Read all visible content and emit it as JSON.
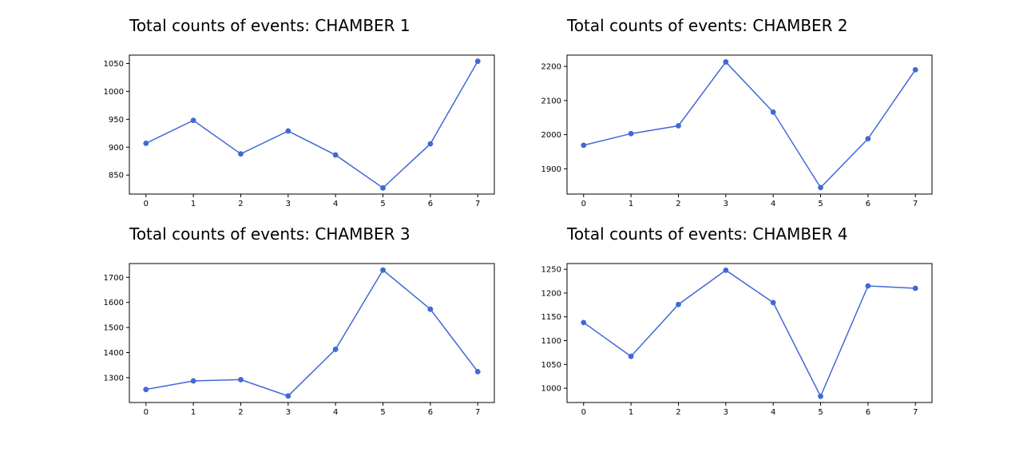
{
  "figure": {
    "background": "#ffffff",
    "line_color": "#4169d6"
  },
  "chart_data": [
    {
      "type": "line",
      "title": "Total counts of events: CHAMBER 1",
      "xlabel": "",
      "ylabel": "",
      "x": [
        0,
        1,
        2,
        3,
        4,
        5,
        6,
        7
      ],
      "x_tick_labels": [
        "0",
        "1",
        "2",
        "3",
        "4",
        "5",
        "6",
        "7"
      ],
      "xlim": [
        -0.35,
        7.35
      ],
      "y_ticks": [
        850,
        900,
        950,
        1000,
        1050
      ],
      "y_tick_labels": [
        "850",
        "900",
        "950",
        "1000",
        "1050"
      ],
      "ylim": [
        816,
        1065
      ],
      "series": [
        {
          "values": [
            907,
            948,
            888,
            929,
            886,
            827,
            906,
            1054
          ],
          "color": "#4169d6",
          "marker": "circle"
        }
      ],
      "grid": false,
      "legend": "none"
    },
    {
      "type": "line",
      "title": "Total counts of events: CHAMBER 2",
      "xlabel": "",
      "ylabel": "",
      "x": [
        0,
        1,
        2,
        3,
        4,
        5,
        6,
        7
      ],
      "x_tick_labels": [
        "0",
        "1",
        "2",
        "3",
        "4",
        "5",
        "6",
        "7"
      ],
      "xlim": [
        -0.35,
        7.35
      ],
      "y_ticks": [
        1900,
        2000,
        2100,
        2200
      ],
      "y_tick_labels": [
        "1900",
        "2000",
        "2100",
        "2200"
      ],
      "ylim": [
        1826,
        2233
      ],
      "series": [
        {
          "values": [
            1969,
            2003,
            2026,
            2213,
            2066,
            1845,
            1988,
            2190
          ],
          "color": "#4169d6",
          "marker": "circle"
        }
      ],
      "grid": false,
      "legend": "none"
    },
    {
      "type": "line",
      "title": "Total counts of events: CHAMBER 3",
      "xlabel": "",
      "ylabel": "",
      "x": [
        0,
        1,
        2,
        3,
        4,
        5,
        6,
        7
      ],
      "x_tick_labels": [
        "0",
        "1",
        "2",
        "3",
        "4",
        "5",
        "6",
        "7"
      ],
      "xlim": [
        -0.35,
        7.35
      ],
      "y_ticks": [
        1300,
        1400,
        1500,
        1600,
        1700
      ],
      "y_tick_labels": [
        "1300",
        "1400",
        "1500",
        "1600",
        "1700"
      ],
      "ylim": [
        1201,
        1755
      ],
      "series": [
        {
          "values": [
            1253,
            1287,
            1292,
            1227,
            1413,
            1729,
            1573,
            1324
          ],
          "color": "#4169d6",
          "marker": "circle"
        }
      ],
      "grid": false,
      "legend": "none"
    },
    {
      "type": "line",
      "title": "Total counts of events: CHAMBER 4",
      "xlabel": "",
      "ylabel": "",
      "x": [
        0,
        1,
        2,
        3,
        4,
        5,
        6,
        7
      ],
      "x_tick_labels": [
        "0",
        "1",
        "2",
        "3",
        "4",
        "5",
        "6",
        "7"
      ],
      "xlim": [
        -0.35,
        7.35
      ],
      "y_ticks": [
        1000,
        1050,
        1100,
        1150,
        1200,
        1250
      ],
      "y_tick_labels": [
        "1000",
        "1050",
        "1100",
        "1150",
        "1200",
        "1250"
      ],
      "ylim": [
        970,
        1262
      ],
      "series": [
        {
          "values": [
            1138,
            1067,
            1176,
            1248,
            1180,
            983,
            1215,
            1210
          ],
          "color": "#4169d6",
          "marker": "circle"
        }
      ],
      "grid": false,
      "legend": "none"
    }
  ]
}
